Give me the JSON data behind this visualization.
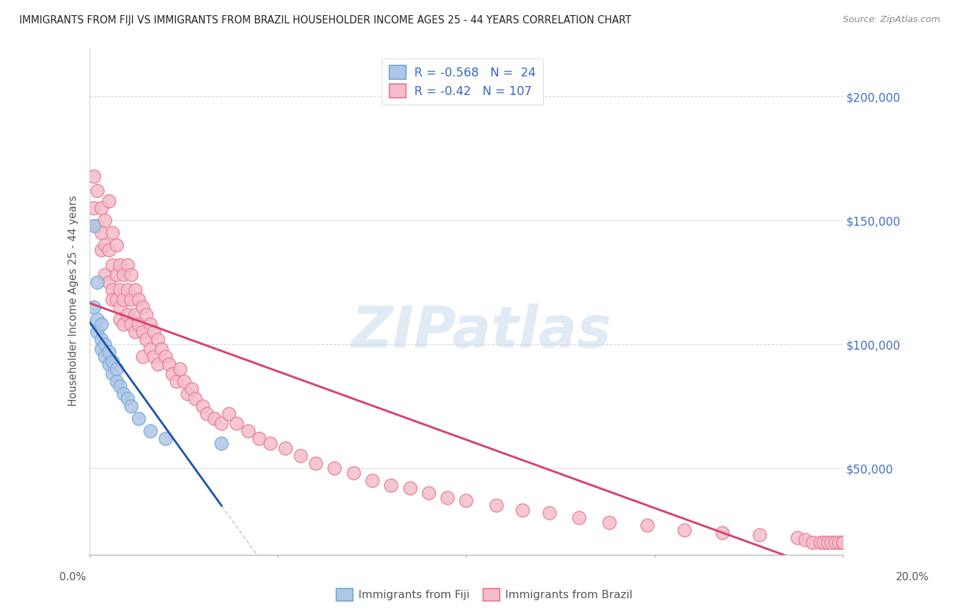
{
  "title": "IMMIGRANTS FROM FIJI VS IMMIGRANTS FROM BRAZIL HOUSEHOLDER INCOME AGES 25 - 44 YEARS CORRELATION CHART",
  "source": "Source: ZipAtlas.com",
  "ylabel": "Householder Income Ages 25 - 44 years",
  "xlim": [
    0.0,
    0.2
  ],
  "ylim": [
    15000,
    220000
  ],
  "yticks": [
    50000,
    100000,
    150000,
    200000
  ],
  "ytick_labels": [
    "$50,000",
    "$100,000",
    "$150,000",
    "$200,000"
  ],
  "fiji_color": "#aec6e8",
  "fiji_edge_color": "#7bafd4",
  "brazil_color": "#f5bccb",
  "brazil_edge_color": "#e8849a",
  "fiji_line_color": "#2255aa",
  "brazil_line_color": "#d94070",
  "fiji_R": -0.568,
  "fiji_N": 24,
  "brazil_R": -0.42,
  "brazil_N": 107,
  "watermark_text": "ZIPatlas",
  "background_color": "#ffffff",
  "grid_color": "#cccccc",
  "title_color": "#222222",
  "right_tick_color": "#4472c4",
  "legend_R_color": "#d04060",
  "fiji_scatter_x": [
    0.001,
    0.001,
    0.002,
    0.002,
    0.002,
    0.003,
    0.003,
    0.003,
    0.004,
    0.004,
    0.005,
    0.005,
    0.006,
    0.006,
    0.007,
    0.007,
    0.008,
    0.009,
    0.01,
    0.011,
    0.013,
    0.016,
    0.02,
    0.035
  ],
  "fiji_scatter_y": [
    148000,
    115000,
    125000,
    110000,
    105000,
    108000,
    102000,
    98000,
    100000,
    95000,
    97000,
    92000,
    93000,
    88000,
    90000,
    85000,
    83000,
    80000,
    78000,
    75000,
    70000,
    65000,
    62000,
    60000
  ],
  "brazil_scatter_x": [
    0.001,
    0.001,
    0.002,
    0.002,
    0.003,
    0.003,
    0.003,
    0.004,
    0.004,
    0.004,
    0.005,
    0.005,
    0.005,
    0.006,
    0.006,
    0.006,
    0.006,
    0.007,
    0.007,
    0.007,
    0.008,
    0.008,
    0.008,
    0.008,
    0.009,
    0.009,
    0.009,
    0.01,
    0.01,
    0.01,
    0.011,
    0.011,
    0.011,
    0.012,
    0.012,
    0.012,
    0.013,
    0.013,
    0.014,
    0.014,
    0.014,
    0.015,
    0.015,
    0.016,
    0.016,
    0.017,
    0.017,
    0.018,
    0.018,
    0.019,
    0.02,
    0.021,
    0.022,
    0.023,
    0.024,
    0.025,
    0.026,
    0.027,
    0.028,
    0.03,
    0.031,
    0.033,
    0.035,
    0.037,
    0.039,
    0.042,
    0.045,
    0.048,
    0.052,
    0.056,
    0.06,
    0.065,
    0.07,
    0.075,
    0.08,
    0.085,
    0.09,
    0.095,
    0.1,
    0.108,
    0.115,
    0.122,
    0.13,
    0.138,
    0.148,
    0.158,
    0.168,
    0.178,
    0.188,
    0.19,
    0.192,
    0.194,
    0.195,
    0.196,
    0.197,
    0.198,
    0.199,
    0.2,
    0.2,
    0.2,
    0.2,
    0.2,
    0.2,
    0.2,
    0.2,
    0.2,
    0.2
  ],
  "brazil_scatter_y": [
    168000,
    155000,
    162000,
    148000,
    155000,
    145000,
    138000,
    150000,
    140000,
    128000,
    158000,
    138000,
    125000,
    145000,
    132000,
    122000,
    118000,
    140000,
    128000,
    118000,
    132000,
    122000,
    115000,
    110000,
    128000,
    118000,
    108000,
    132000,
    122000,
    112000,
    128000,
    118000,
    108000,
    122000,
    112000,
    105000,
    118000,
    108000,
    115000,
    105000,
    95000,
    112000,
    102000,
    108000,
    98000,
    105000,
    95000,
    102000,
    92000,
    98000,
    95000,
    92000,
    88000,
    85000,
    90000,
    85000,
    80000,
    82000,
    78000,
    75000,
    72000,
    70000,
    68000,
    72000,
    68000,
    65000,
    62000,
    60000,
    58000,
    55000,
    52000,
    50000,
    48000,
    45000,
    43000,
    42000,
    40000,
    38000,
    37000,
    35000,
    33000,
    32000,
    30000,
    28000,
    27000,
    25000,
    24000,
    23000,
    22000,
    21000,
    20000,
    20000,
    20000,
    20000,
    20000,
    20000,
    20000,
    20000,
    20000,
    20000,
    20000,
    20000,
    20000,
    20000,
    20000,
    20000,
    20000
  ]
}
